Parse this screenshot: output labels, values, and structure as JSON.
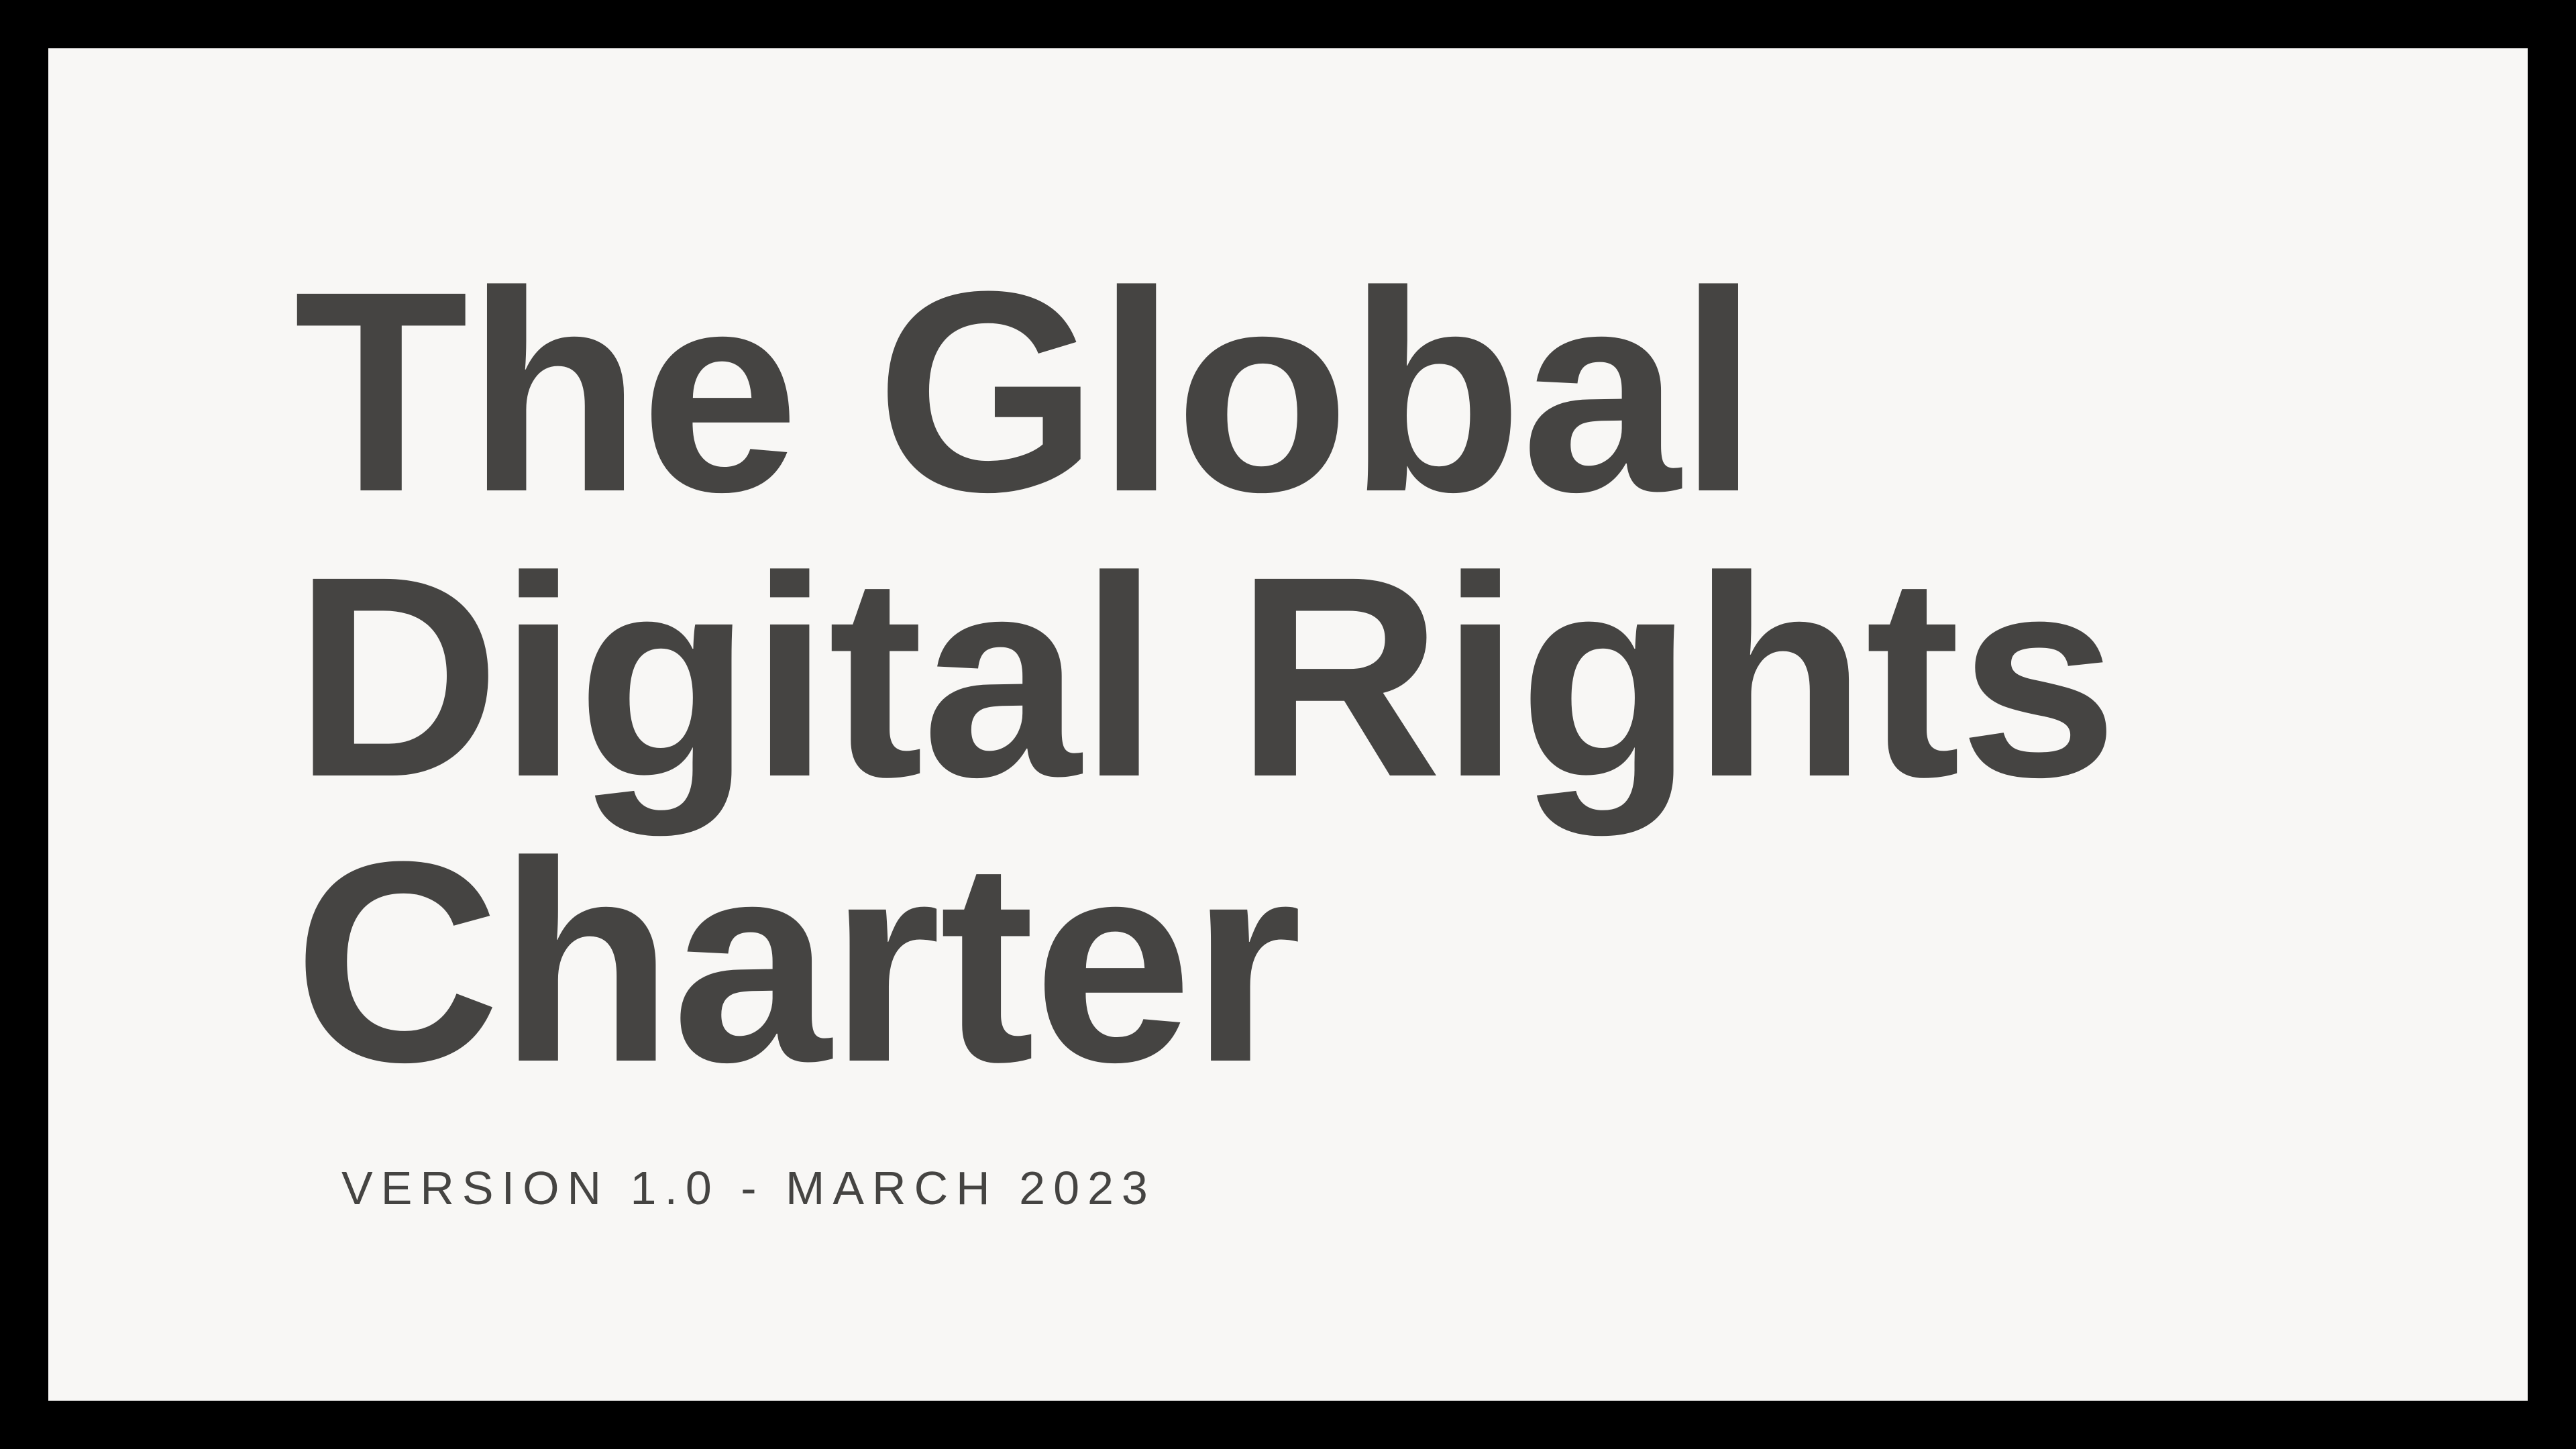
{
  "slide": {
    "title": "The Global Digital Rights Charter",
    "title_lines": [
      "The Global",
      "Digital Rights",
      "Charter"
    ],
    "subtitle": "VERSION 1.0 - MARCH 2023"
  },
  "colors": {
    "background": "#000000",
    "panel": "#f8f7f5",
    "text": "#454442"
  }
}
